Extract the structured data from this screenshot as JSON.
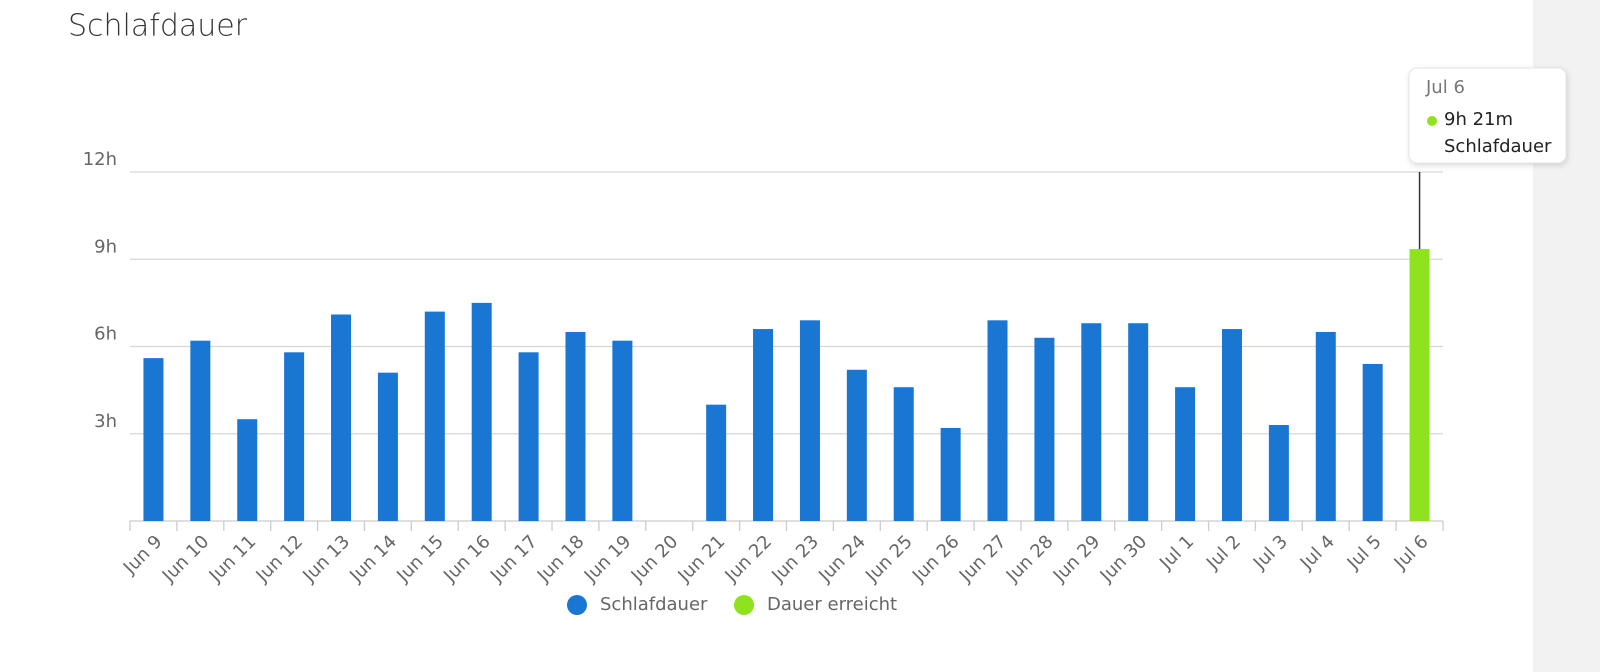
{
  "chart_data": {
    "type": "bar",
    "title": "Schlafdauer",
    "categories": [
      "Jun 9",
      "Jun 10",
      "Jun 11",
      "Jun 12",
      "Jun 13",
      "Jun 14",
      "Jun 15",
      "Jun 16",
      "Jun 17",
      "Jun 18",
      "Jun 19",
      "Jun 20",
      "Jun 21",
      "Jun 22",
      "Jun 23",
      "Jun 24",
      "Jun 25",
      "Jun 26",
      "Jun 27",
      "Jun 28",
      "Jun 29",
      "Jun 30",
      "Jul 1",
      "Jul 2",
      "Jul 3",
      "Jul 4",
      "Jul 5",
      "Jul 6"
    ],
    "series": [
      {
        "name": "Schlafdauer",
        "color": "#1976d2",
        "values": [
          5.6,
          6.2,
          3.5,
          5.8,
          7.1,
          5.1,
          7.2,
          7.5,
          5.8,
          6.5,
          6.2,
          null,
          4.0,
          6.6,
          6.9,
          5.2,
          4.6,
          3.2,
          6.9,
          6.3,
          6.8,
          6.8,
          4.6,
          6.6,
          3.3,
          6.5,
          5.4,
          null
        ]
      },
      {
        "name": "Dauer erreicht",
        "color": "#8ee21e",
        "values": [
          null,
          null,
          null,
          null,
          null,
          null,
          null,
          null,
          null,
          null,
          null,
          null,
          null,
          null,
          null,
          null,
          null,
          null,
          null,
          null,
          null,
          null,
          null,
          null,
          null,
          null,
          null,
          9.35
        ],
        "value_labels": [
          null,
          null,
          null,
          null,
          null,
          null,
          null,
          null,
          null,
          null,
          null,
          null,
          null,
          null,
          null,
          null,
          null,
          null,
          null,
          null,
          null,
          null,
          null,
          null,
          null,
          null,
          null,
          "9h 21m"
        ]
      }
    ],
    "ylim": [
      0,
      12
    ],
    "yticks": [
      {
        "value": 3,
        "label": "3h"
      },
      {
        "value": 6,
        "label": "6h"
      },
      {
        "value": 9,
        "label": "9h"
      },
      {
        "value": 12,
        "label": "12h"
      }
    ],
    "grid": true
  }
}
